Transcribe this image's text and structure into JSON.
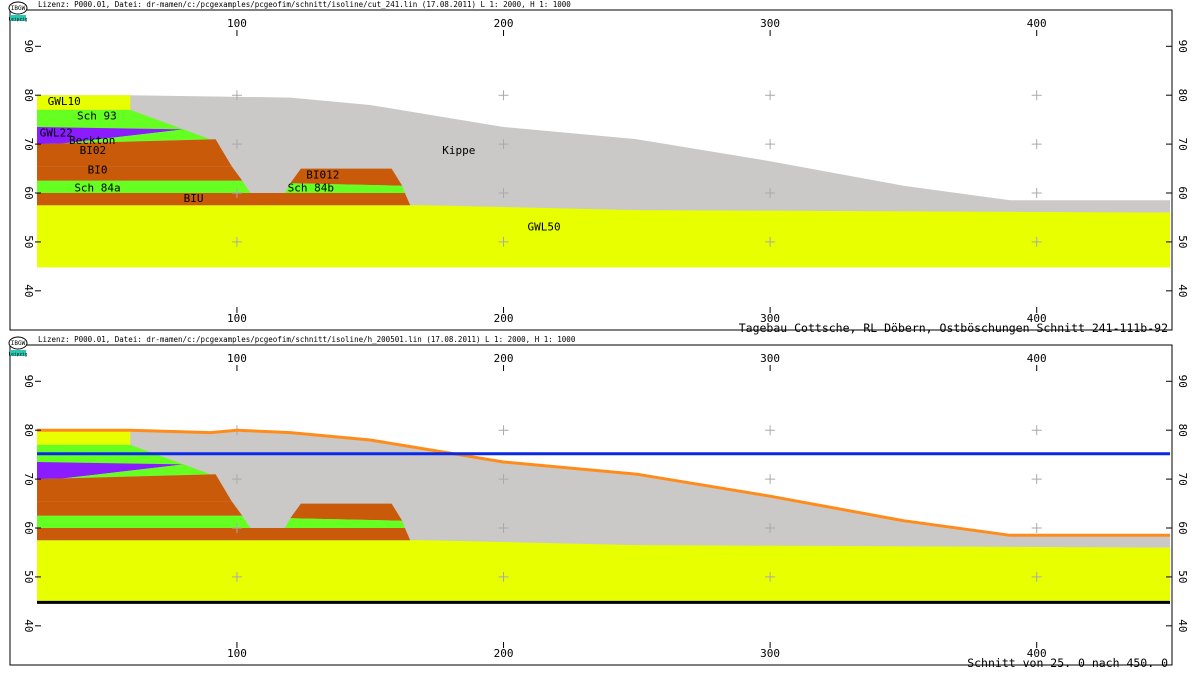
{
  "colors": {
    "yellow": "#e8ff00",
    "green": "#66ff22",
    "purple": "#8a1cff",
    "brown": "#c85a0a",
    "gray": "#cbc8c8",
    "water_line": "#0a28e6",
    "surface_line": "#ff8c1a",
    "base_line": "#000000"
  },
  "logo": {
    "text": "IBGW",
    "sub": "Leipzig"
  },
  "chart_data": [
    {
      "type": "area",
      "header": "Lizenz: P000.01, Datei: dr-mamen/c:/pcgexamples/pcgeofim/schnitt/isoline/cut_241.lin (17.08.2011) L 1:  2000, H 1:  1000",
      "title": "",
      "xlim": [
        25,
        450
      ],
      "ylim": [
        37,
        92
      ],
      "x_ticks": [
        100,
        200,
        300,
        400
      ],
      "x_tick_labels": [
        "100",
        "200",
        "300",
        "400"
      ],
      "y_ticks": [
        40,
        50,
        60,
        70,
        80,
        90
      ],
      "y_tick_labels": [
        "40",
        "50",
        "60",
        "70",
        "80",
        "90"
      ],
      "caption": "Tagebau Cottsche, RL Döbern, Ostböschungen Schnitt 241-111b-92",
      "layers": [
        {
          "name": "Kippe",
          "color": "gray",
          "polygon": [
            [
              25,
              80
            ],
            [
              60,
              80
            ],
            [
              120,
              79.5
            ],
            [
              150,
              78
            ],
            [
              200,
              73.5
            ],
            [
              250,
              71
            ],
            [
              300,
              66.5
            ],
            [
              350,
              61.5
            ],
            [
              390,
              58.5
            ],
            [
              450,
              58.5
            ],
            [
              450,
              56
            ],
            [
              25,
              56
            ]
          ]
        },
        {
          "name": "GWL50",
          "color": "yellow",
          "polygon": [
            [
              25,
              57.5
            ],
            [
              170,
              57.5
            ],
            [
              250,
              56.5
            ],
            [
              450,
              56
            ],
            [
              450,
              44.8
            ],
            [
              25,
              44.8
            ]
          ]
        },
        {
          "name": "GWL10",
          "color": "yellow",
          "polygon": [
            [
              25,
              80
            ],
            [
              60,
              80
            ],
            [
              60,
              77
            ],
            [
              25,
              77
            ]
          ]
        },
        {
          "name": "Sch 93",
          "color": "green",
          "polygon": [
            [
              25,
              77
            ],
            [
              60,
              77
            ],
            [
              80,
              73
            ],
            [
              25,
              73
            ]
          ]
        },
        {
          "name": "GWL22",
          "color": "purple",
          "polygon": [
            [
              25,
              73.5
            ],
            [
              80,
              73
            ],
            [
              25,
              69.5
            ]
          ]
        },
        {
          "name": "Beckton",
          "color": "green",
          "polygon": [
            [
              25,
              69.5
            ],
            [
              80,
              73
            ],
            [
              90,
              71
            ],
            [
              25,
              70
            ]
          ]
        },
        {
          "name": "BI02",
          "color": "brown",
          "polygon": [
            [
              25,
              70
            ],
            [
              92,
              71
            ],
            [
              98,
              65.5
            ],
            [
              25,
              65.5
            ]
          ]
        },
        {
          "name": "BI0",
          "color": "brown",
          "polygon": [
            [
              25,
              65.5
            ],
            [
              98,
              65.5
            ],
            [
              102,
              62.5
            ],
            [
              25,
              62.5
            ]
          ]
        },
        {
          "name": "Sch 84a",
          "color": "green",
          "polygon": [
            [
              25,
              62.5
            ],
            [
              102,
              62.5
            ],
            [
              105,
              60
            ],
            [
              25,
              60
            ]
          ]
        },
        {
          "name": "BIU",
          "color": "brown",
          "polygon": [
            [
              25,
              60
            ],
            [
              163,
              60
            ],
            [
              165,
              57.5
            ],
            [
              25,
              57.5
            ]
          ]
        },
        {
          "name": "BI012",
          "color": "brown",
          "polygon": [
            [
              120,
              62
            ],
            [
              124,
              65
            ],
            [
              158,
              65
            ],
            [
              162,
              61.5
            ]
          ]
        },
        {
          "name": "Sch 84b",
          "color": "green",
          "polygon": [
            [
              118,
              60
            ],
            [
              120,
              62
            ],
            [
              162,
              61.5
            ],
            [
              163,
              60
            ]
          ]
        }
      ],
      "annotations": [
        {
          "text": "GWL10",
          "x": 29,
          "y": 78
        },
        {
          "text": "Sch 93",
          "x": 40,
          "y": 75
        },
        {
          "text": "GWL22",
          "x": 26,
          "y": 71.6
        },
        {
          "text": "Beckton",
          "x": 37,
          "y": 70
        },
        {
          "text": "BI02",
          "x": 41,
          "y": 68
        },
        {
          "text": "BI0",
          "x": 44,
          "y": 64
        },
        {
          "text": "Sch 84a",
          "x": 39,
          "y": 60.3
        },
        {
          "text": "BIU",
          "x": 80,
          "y": 58.2
        },
        {
          "text": "BI012",
          "x": 126,
          "y": 63
        },
        {
          "text": "Sch 84b",
          "x": 119,
          "y": 60.3
        },
        {
          "text": "Kippe",
          "x": 177,
          "y": 68
        },
        {
          "text": "GWL50",
          "x": 209,
          "y": 52.3
        }
      ]
    },
    {
      "type": "area",
      "header": "Lizenz: P000.01, Datei: dr-mamen/c:/pcgexamples/pcgeofim/schnitt/isoline/h_200501.lin (17.08.2011) L 1:  2000, H 1:  1000",
      "title": "",
      "xlim": [
        25,
        450
      ],
      "ylim": [
        37,
        92
      ],
      "x_ticks": [
        100,
        200,
        300,
        400
      ],
      "x_tick_labels": [
        "100",
        "200",
        "300",
        "400"
      ],
      "y_ticks": [
        40,
        50,
        60,
        70,
        80,
        90
      ],
      "y_tick_labels": [
        "40",
        "50",
        "60",
        "70",
        "80",
        "90"
      ],
      "caption": "Schnitt von       25.        0 nach      450.        0",
      "layers": [
        {
          "name": "Kippe",
          "color": "gray",
          "polygon": [
            [
              25,
              80
            ],
            [
              60,
              80
            ],
            [
              120,
              79.5
            ],
            [
              150,
              78
            ],
            [
              200,
              73.5
            ],
            [
              250,
              71
            ],
            [
              300,
              66.5
            ],
            [
              350,
              61.5
            ],
            [
              390,
              58.5
            ],
            [
              450,
              58.5
            ],
            [
              450,
              56
            ],
            [
              25,
              56
            ]
          ]
        },
        {
          "name": "GWL50",
          "color": "yellow",
          "polygon": [
            [
              25,
              57.5
            ],
            [
              170,
              57.5
            ],
            [
              250,
              56.5
            ],
            [
              450,
              56
            ],
            [
              450,
              44.8
            ],
            [
              25,
              44.8
            ]
          ]
        },
        {
          "name": "GWL10",
          "color": "yellow",
          "polygon": [
            [
              25,
              80
            ],
            [
              60,
              80
            ],
            [
              60,
              77
            ],
            [
              25,
              77
            ]
          ]
        },
        {
          "name": "Sch 93",
          "color": "green",
          "polygon": [
            [
              25,
              77
            ],
            [
              60,
              77
            ],
            [
              80,
              73
            ],
            [
              25,
              73
            ]
          ]
        },
        {
          "name": "GWL22",
          "color": "purple",
          "polygon": [
            [
              25,
              73.5
            ],
            [
              80,
              73
            ],
            [
              25,
              69.5
            ]
          ]
        },
        {
          "name": "Beckton",
          "color": "green",
          "polygon": [
            [
              25,
              69.5
            ],
            [
              80,
              73
            ],
            [
              90,
              71
            ],
            [
              25,
              70
            ]
          ]
        },
        {
          "name": "BI02",
          "color": "brown",
          "polygon": [
            [
              25,
              70
            ],
            [
              92,
              71
            ],
            [
              98,
              65.5
            ],
            [
              25,
              65.5
            ]
          ]
        },
        {
          "name": "BI0",
          "color": "brown",
          "polygon": [
            [
              25,
              65.5
            ],
            [
              98,
              65.5
            ],
            [
              102,
              62.5
            ],
            [
              25,
              62.5
            ]
          ]
        },
        {
          "name": "Sch 84a",
          "color": "green",
          "polygon": [
            [
              25,
              62.5
            ],
            [
              102,
              62.5
            ],
            [
              105,
              60
            ],
            [
              25,
              60
            ]
          ]
        },
        {
          "name": "BIU",
          "color": "brown",
          "polygon": [
            [
              25,
              60
            ],
            [
              163,
              60
            ],
            [
              165,
              57.5
            ],
            [
              25,
              57.5
            ]
          ]
        },
        {
          "name": "BI012",
          "color": "brown",
          "polygon": [
            [
              120,
              62
            ],
            [
              124,
              65
            ],
            [
              158,
              65
            ],
            [
              162,
              61.5
            ]
          ]
        },
        {
          "name": "Sch 84b",
          "color": "green",
          "polygon": [
            [
              118,
              60
            ],
            [
              120,
              62
            ],
            [
              162,
              61.5
            ],
            [
              163,
              60
            ]
          ]
        }
      ],
      "lines": [
        {
          "color": "surface_line",
          "points": [
            [
              25,
              80
            ],
            [
              60,
              80
            ],
            [
              90,
              79.5
            ],
            [
              100,
              80
            ],
            [
              120,
              79.5
            ],
            [
              150,
              78
            ],
            [
              200,
              73.5
            ],
            [
              250,
              71
            ],
            [
              300,
              66.5
            ],
            [
              350,
              61.5
            ],
            [
              390,
              58.5
            ],
            [
              450,
              58.5
            ]
          ]
        },
        {
          "color": "water_line",
          "points": [
            [
              25,
              75.2
            ],
            [
              450,
              75.2
            ]
          ]
        },
        {
          "color": "base_line",
          "points": [
            [
              25,
              44.8
            ],
            [
              450,
              44.8
            ]
          ]
        }
      ],
      "annotations": []
    }
  ]
}
